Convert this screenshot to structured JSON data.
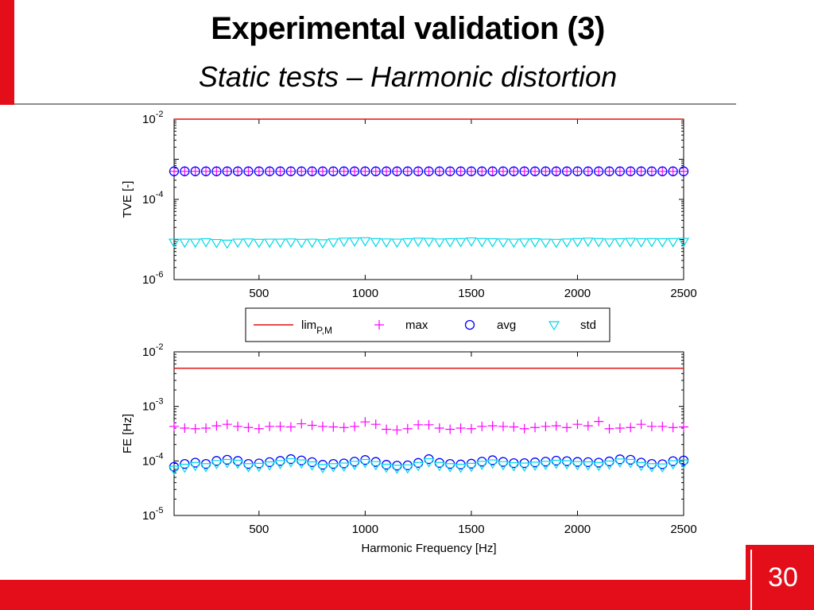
{
  "slide": {
    "title": "Experimental validation (3)",
    "subtitle": "Static tests – Harmonic distortion",
    "page_number": "30"
  },
  "colors": {
    "accent": "#e30e19",
    "lim": "#e01010",
    "max": "#ff00ff",
    "avg": "#0000ff",
    "std": "#00d8e8"
  },
  "chart_data": [
    {
      "type": "scatter",
      "title": "",
      "xlabel": "",
      "ylabel": "TVE [-]",
      "yscale": "log",
      "xlim": [
        100,
        2500
      ],
      "ylim": [
        1e-06,
        0.01
      ],
      "xticks": [
        500,
        1000,
        1500,
        2000,
        2500
      ],
      "xtick_labels": [
        "500",
        "1000",
        "1500",
        "2000",
        "2500"
      ],
      "yticks": [
        1e-06,
        0.0001,
        0.01
      ],
      "ytick_labels": [
        {
          "base": "10",
          "exp": "-6"
        },
        {
          "base": "10",
          "exp": "-4"
        },
        {
          "base": "10",
          "exp": "-2"
        }
      ],
      "x": [
        100,
        150,
        200,
        250,
        300,
        350,
        400,
        450,
        500,
        550,
        600,
        650,
        700,
        750,
        800,
        850,
        900,
        950,
        1000,
        1050,
        1100,
        1150,
        1200,
        1250,
        1300,
        1350,
        1400,
        1450,
        1500,
        1550,
        1600,
        1650,
        1700,
        1750,
        1800,
        1850,
        1900,
        1950,
        2000,
        2050,
        2100,
        2150,
        2200,
        2250,
        2300,
        2350,
        2400,
        2450,
        2500
      ],
      "series": [
        {
          "name": "lim",
          "style": "line",
          "values": [
            0.01,
            0.01,
            0.01,
            0.01,
            0.01,
            0.01,
            0.01,
            0.01,
            0.01,
            0.01,
            0.01,
            0.01,
            0.01,
            0.01,
            0.01,
            0.01,
            0.01,
            0.01,
            0.01,
            0.01,
            0.01,
            0.01,
            0.01,
            0.01,
            0.01,
            0.01,
            0.01,
            0.01,
            0.01,
            0.01,
            0.01,
            0.01,
            0.01,
            0.01,
            0.01,
            0.01,
            0.01,
            0.01,
            0.01,
            0.01,
            0.01,
            0.01,
            0.01,
            0.01,
            0.01,
            0.01,
            0.01,
            0.01,
            0.01
          ]
        },
        {
          "name": "max",
          "style": "plus",
          "values": [
            0.0005,
            0.0005,
            0.0005,
            0.0005,
            0.0005,
            0.0005,
            0.0005,
            0.0005,
            0.0005,
            0.0005,
            0.0005,
            0.0005,
            0.0005,
            0.0005,
            0.0005,
            0.0005,
            0.0005,
            0.0005,
            0.0005,
            0.0005,
            0.0005,
            0.0005,
            0.0005,
            0.0005,
            0.0005,
            0.0005,
            0.0005,
            0.0005,
            0.0005,
            0.0005,
            0.0005,
            0.0005,
            0.0005,
            0.0005,
            0.0005,
            0.0005,
            0.0005,
            0.0005,
            0.0005,
            0.0005,
            0.0005,
            0.0005,
            0.0005,
            0.0005,
            0.0005,
            0.0005,
            0.0005,
            0.0005,
            0.0005
          ]
        },
        {
          "name": "avg",
          "style": "circle",
          "values": [
            0.0005,
            0.0005,
            0.0005,
            0.0005,
            0.0005,
            0.0005,
            0.0005,
            0.0005,
            0.0005,
            0.0005,
            0.0005,
            0.0005,
            0.0005,
            0.0005,
            0.0005,
            0.0005,
            0.0005,
            0.0005,
            0.0005,
            0.0005,
            0.0005,
            0.0005,
            0.0005,
            0.0005,
            0.0005,
            0.0005,
            0.0005,
            0.0005,
            0.0005,
            0.0005,
            0.0005,
            0.0005,
            0.0005,
            0.0005,
            0.0005,
            0.0005,
            0.0005,
            0.0005,
            0.0005,
            0.0005,
            0.0005,
            0.0005,
            0.0005,
            0.0005,
            0.0005,
            0.0005,
            0.0005,
            0.0005,
            0.0005
          ]
        },
        {
          "name": "std",
          "style": "triangle-down",
          "values": [
            8.5e-06,
            8.5e-06,
            8.5e-06,
            8.7e-06,
            8.3e-06,
            8e-06,
            8.5e-06,
            8.6e-06,
            8.4e-06,
            8.5e-06,
            8.5e-06,
            8.6e-06,
            8.4e-06,
            8.5e-06,
            8.2e-06,
            8.6e-06,
            9e-06,
            9.1e-06,
            9.2e-06,
            8.8e-06,
            8.6e-06,
            8.5e-06,
            8.7e-06,
            9e-06,
            8.9e-06,
            8.6e-06,
            8.7e-06,
            8.8e-06,
            9.1e-06,
            8.8e-06,
            8.7e-06,
            8.6e-06,
            8.5e-06,
            8.6e-06,
            8.7e-06,
            8.5e-06,
            8.4e-06,
            8.6e-06,
            8.8e-06,
            9e-06,
            8.8e-06,
            8.6e-06,
            8.7e-06,
            8.9e-06,
            8.7e-06,
            8.8e-06,
            8.7e-06,
            8.8e-06,
            8.9e-06
          ]
        }
      ]
    },
    {
      "type": "scatter",
      "title": "",
      "xlabel": "Harmonic Frequency [Hz]",
      "ylabel": "FE [Hz]",
      "yscale": "log",
      "xlim": [
        100,
        2500
      ],
      "ylim": [
        1e-05,
        0.01
      ],
      "xticks": [
        500,
        1000,
        1500,
        2000,
        2500
      ],
      "xtick_labels": [
        "500",
        "1000",
        "1500",
        "2000",
        "2500"
      ],
      "yticks": [
        1e-05,
        0.0001,
        0.001,
        0.01
      ],
      "ytick_labels": [
        {
          "base": "10",
          "exp": "-5"
        },
        {
          "base": "10",
          "exp": "-4"
        },
        {
          "base": "10",
          "exp": "-3"
        },
        {
          "base": "10",
          "exp": "-2"
        }
      ],
      "x": [
        100,
        150,
        200,
        250,
        300,
        350,
        400,
        450,
        500,
        550,
        600,
        650,
        700,
        750,
        800,
        850,
        900,
        950,
        1000,
        1050,
        1100,
        1150,
        1200,
        1250,
        1300,
        1350,
        1400,
        1450,
        1500,
        1550,
        1600,
        1650,
        1700,
        1750,
        1800,
        1850,
        1900,
        1950,
        2000,
        2050,
        2100,
        2150,
        2200,
        2250,
        2300,
        2350,
        2400,
        2450,
        2500
      ],
      "series": [
        {
          "name": "lim",
          "style": "line",
          "values": [
            0.005,
            0.005,
            0.005,
            0.005,
            0.005,
            0.005,
            0.005,
            0.005,
            0.005,
            0.005,
            0.005,
            0.005,
            0.005,
            0.005,
            0.005,
            0.005,
            0.005,
            0.005,
            0.005,
            0.005,
            0.005,
            0.005,
            0.005,
            0.005,
            0.005,
            0.005,
            0.005,
            0.005,
            0.005,
            0.005,
            0.005,
            0.005,
            0.005,
            0.005,
            0.005,
            0.005,
            0.005,
            0.005,
            0.005,
            0.005,
            0.005,
            0.005,
            0.005,
            0.005,
            0.005,
            0.005,
            0.005,
            0.005,
            0.005
          ]
        },
        {
          "name": "max",
          "style": "plus",
          "values": [
            0.00043,
            0.0004,
            0.00039,
            0.0004,
            0.00044,
            0.00047,
            0.00043,
            0.00041,
            0.00039,
            0.00043,
            0.00043,
            0.00042,
            0.00048,
            0.00045,
            0.00043,
            0.00042,
            0.00041,
            0.00043,
            0.00052,
            0.00047,
            0.00038,
            0.00037,
            0.00039,
            0.00046,
            0.00046,
            0.0004,
            0.00038,
            0.0004,
            0.00039,
            0.00043,
            0.00044,
            0.00043,
            0.00042,
            0.00039,
            0.00041,
            0.00043,
            0.00044,
            0.00041,
            0.00047,
            0.00044,
            0.00053,
            0.00039,
            0.0004,
            0.00041,
            0.00047,
            0.00043,
            0.00043,
            0.00041,
            0.00042
          ]
        },
        {
          "name": "avg",
          "style": "circle",
          "values": [
            7.8e-05,
            8.8e-05,
            9.3e-05,
            8.8e-05,
            0.0001,
            0.000105,
            0.0001,
            8.8e-05,
            9e-05,
            9.5e-05,
            0.0001,
            0.000108,
            0.000102,
            9.5e-05,
            8.5e-05,
            8.8e-05,
            9e-05,
            9.7e-05,
            0.000104,
            9.6e-05,
            8.5e-05,
            8.2e-05,
            8.3e-05,
            9.2e-05,
            0.000108,
            9.2e-05,
            8.8e-05,
            8.6e-05,
            8.9e-05,
            9.7e-05,
            0.000103,
            9.6e-05,
            9.1e-05,
            9.1e-05,
            9.4e-05,
            9.7e-05,
            0.000101,
            9.9e-05,
            9.6e-05,
            9.5e-05,
            9.3e-05,
            9.8e-05,
            0.000107,
            0.000105,
            9.3e-05,
            8.8e-05,
            8.7e-05,
            9.9e-05,
            0.000102
          ]
        },
        {
          "name": "std",
          "style": "triangle-down",
          "values": [
            7e-05,
            7.6e-05,
            8.2e-05,
            7.8e-05,
            8.9e-05,
            9.3e-05,
            9e-05,
            7.8e-05,
            7.9e-05,
            8.4e-05,
            8.9e-05,
            9.6e-05,
            9.1e-05,
            8.4e-05,
            7.5e-05,
            7.8e-05,
            8e-05,
            8.6e-05,
            9.3e-05,
            8.5e-05,
            7.6e-05,
            7.3e-05,
            7.4e-05,
            8.2e-05,
            9.6e-05,
            8.2e-05,
            7.8e-05,
            7.6e-05,
            7.9e-05,
            8.6e-05,
            9.1e-05,
            8.5e-05,
            8.1e-05,
            8e-05,
            8.3e-05,
            8.6e-05,
            9e-05,
            8.8e-05,
            8.5e-05,
            8.4e-05,
            8.2e-05,
            8.7e-05,
            9.5e-05,
            9.3e-05,
            8.2e-05,
            7.8e-05,
            7.7e-05,
            8.8e-05,
            9.1e-05
          ]
        }
      ]
    }
  ],
  "legend": {
    "placement": "between-plots",
    "entries": [
      {
        "label": "lim",
        "subscript": "P,M",
        "style": "line"
      },
      {
        "label": "max",
        "style": "plus"
      },
      {
        "label": "avg",
        "style": "circle"
      },
      {
        "label": "std",
        "style": "triangle-down"
      }
    ]
  }
}
